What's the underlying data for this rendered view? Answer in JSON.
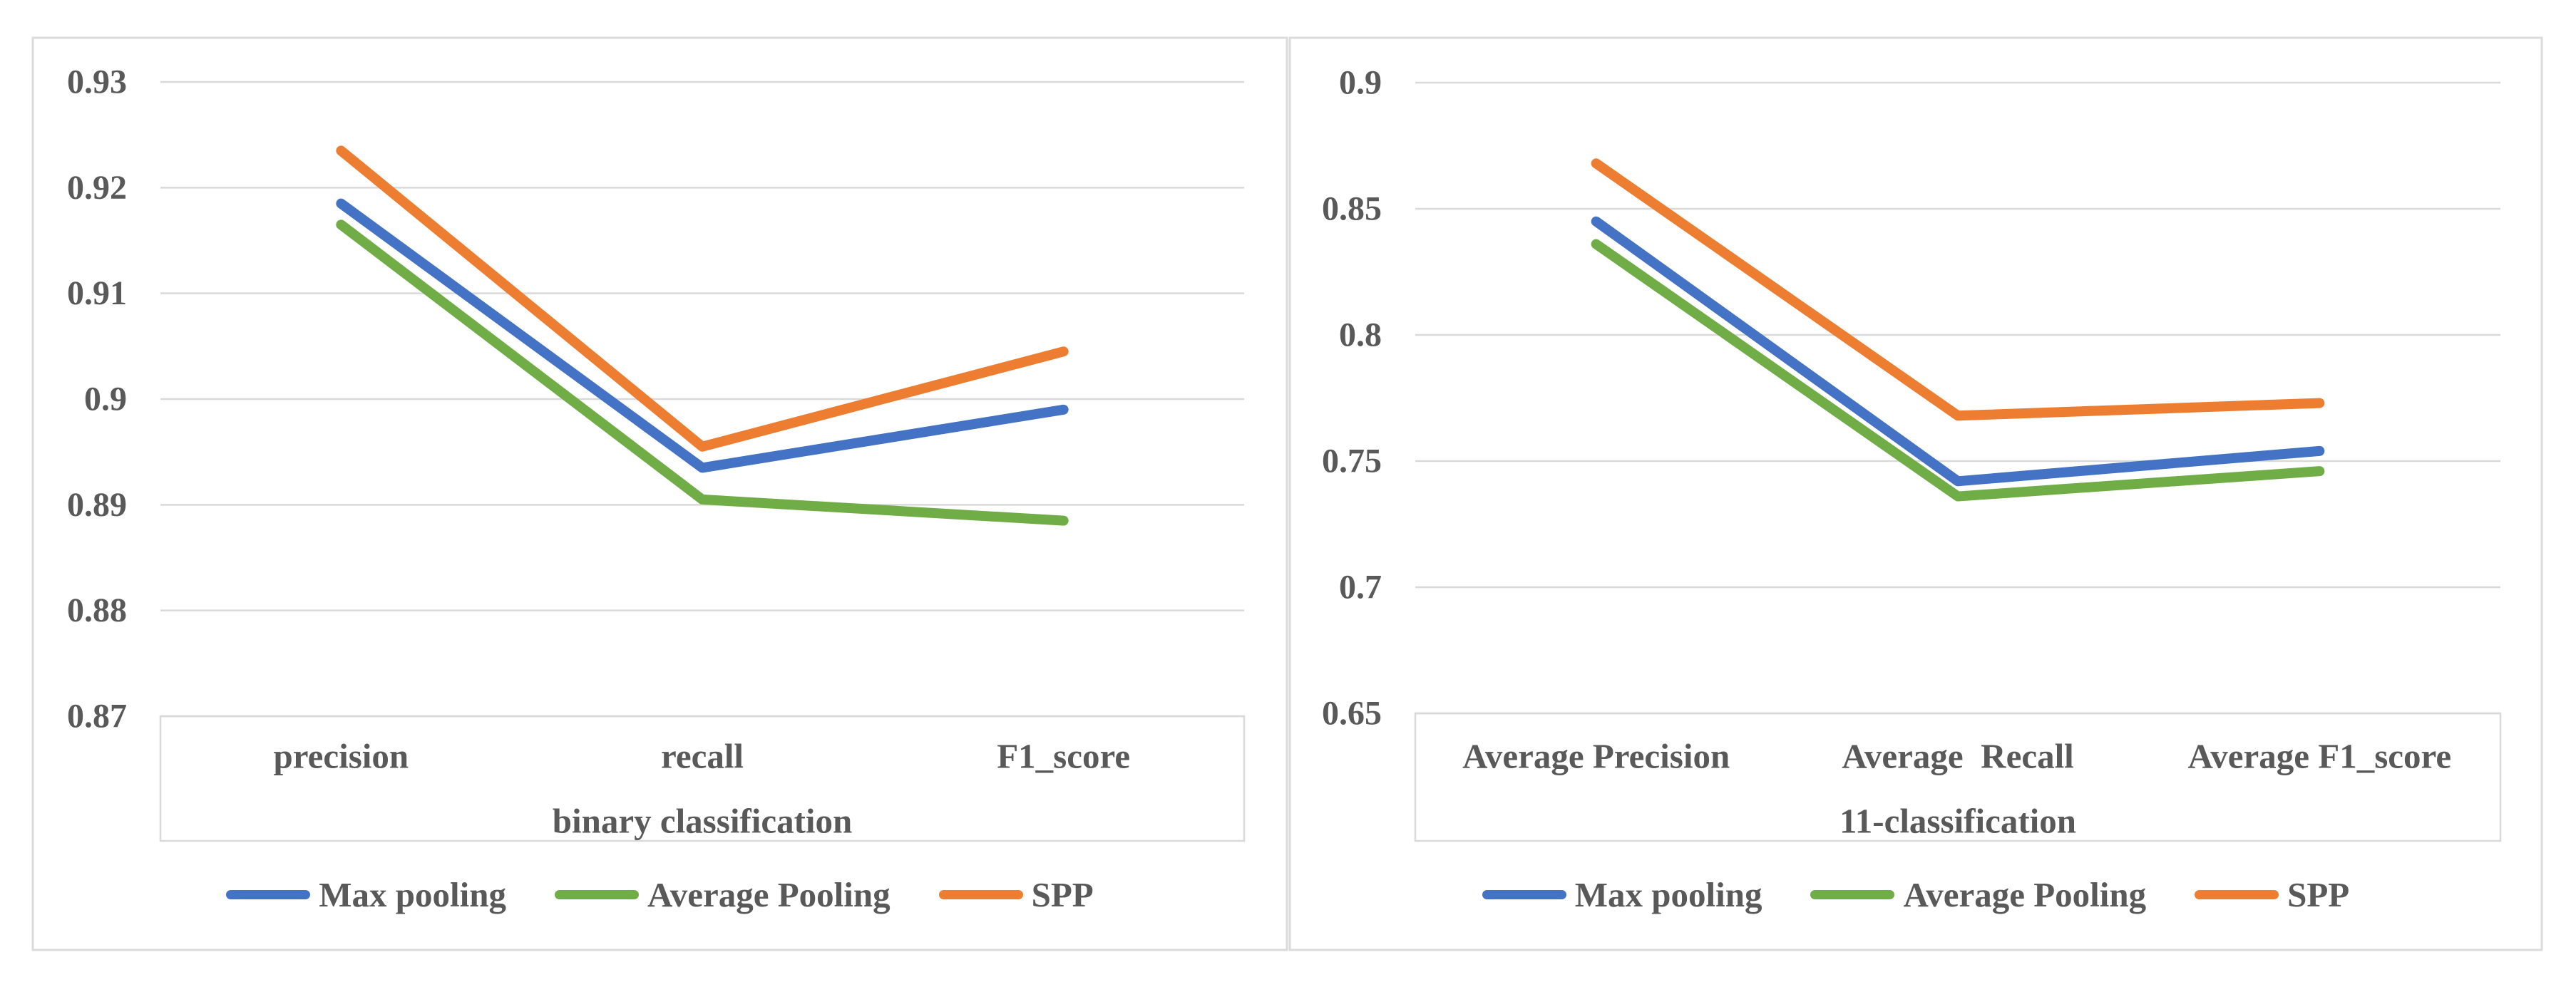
{
  "figure": {
    "background": "#ffffff",
    "panel_border_color": "#dbdbdb",
    "gridline_color": "#d9d9d9",
    "label_box_border_color": "#d9d9d9",
    "text_color": "#595959"
  },
  "chart_data": [
    {
      "type": "line",
      "title": "",
      "xlabel": "binary classification",
      "ylabel": "",
      "categories": [
        "precision",
        "recall",
        "F1_score"
      ],
      "series": [
        {
          "name": "Max pooling",
          "color": "#4472C4",
          "values": [
            0.9185,
            0.8935,
            0.899
          ]
        },
        {
          "name": "Average Pooling",
          "color": "#70AD47",
          "values": [
            0.9165,
            0.8905,
            0.8885
          ]
        },
        {
          "name": "SPP",
          "color": "#ED7D31",
          "values": [
            0.9235,
            0.8955,
            0.9045
          ]
        }
      ],
      "ylim": [
        0.87,
        0.93
      ],
      "yticks": [
        "0.93",
        "0.92",
        "0.91",
        "0.9",
        "0.89",
        "0.88",
        "0.87"
      ],
      "grid": true,
      "legend_position": "bottom"
    },
    {
      "type": "line",
      "title": "",
      "xlabel": "11-classification",
      "ylabel": "",
      "categories": [
        "Average Precision",
        "Average  Recall",
        "Average F1_score"
      ],
      "series": [
        {
          "name": "Max pooling",
          "color": "#4472C4",
          "values": [
            0.845,
            0.742,
            0.754
          ]
        },
        {
          "name": "Average Pooling",
          "color": "#70AD47",
          "values": [
            0.836,
            0.736,
            0.746
          ]
        },
        {
          "name": "SPP",
          "color": "#ED7D31",
          "values": [
            0.868,
            0.768,
            0.773
          ]
        }
      ],
      "ylim": [
        0.65,
        0.9
      ],
      "yticks": [
        "0.9",
        "0.85",
        "0.8",
        "0.75",
        "0.7",
        "0.65"
      ],
      "grid": true,
      "legend_position": "bottom"
    }
  ]
}
